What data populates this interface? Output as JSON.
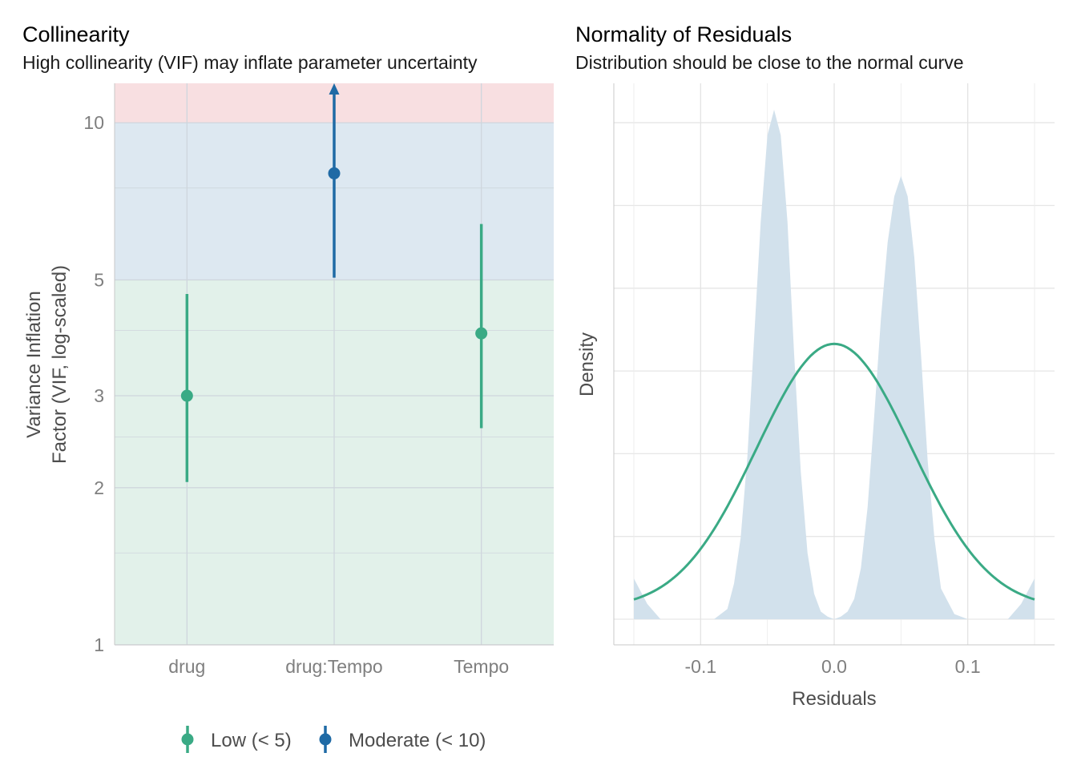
{
  "chart_data": [
    {
      "type": "pointrange",
      "title": "Collinearity",
      "subtitle": "High collinearity (VIF) may inflate parameter uncertainty",
      "ylabel_line1": "Variance Inflation",
      "ylabel_line2": "Factor (VIF, log-scaled)",
      "y_scale": "log",
      "ylim": [
        1,
        11.9
      ],
      "y_ticks": [
        1,
        2,
        3,
        5,
        10
      ],
      "y_tick_labels": [
        "1",
        "2",
        "3",
        "5",
        "10"
      ],
      "y_minor_gridlines": [
        1.5,
        2.5,
        4,
        7.5
      ],
      "categories": [
        "drug",
        "drug:Tempo",
        "Tempo"
      ],
      "points": [
        {
          "category": "drug",
          "vif": 3.0,
          "low": 2.05,
          "high": 4.7,
          "group": "Low (< 5)"
        },
        {
          "category": "drug:Tempo",
          "vif": 8.0,
          "low": 5.05,
          "high": 11.9,
          "high_truncated": true,
          "group": "Moderate (< 10)"
        },
        {
          "category": "Tempo",
          "vif": 3.95,
          "low": 2.6,
          "high": 6.4,
          "group": "Low (< 5)"
        }
      ],
      "bands": [
        {
          "from": 1,
          "to": 5,
          "color": "#e2f1ea"
        },
        {
          "from": 5,
          "to": 10,
          "color": "#dde8f1"
        },
        {
          "from": 10,
          "to": 11.9,
          "color": "#f8dfe1"
        }
      ],
      "legend": {
        "position": "bottom",
        "items": [
          {
            "label": "Low (< 5)",
            "color": "#3aaa85"
          },
          {
            "label": "Moderate (< 10)",
            "color": "#1f6aa5"
          }
        ]
      },
      "grid": true
    },
    {
      "type": "area",
      "title": "Normality of Residuals",
      "subtitle": "Distribution should be close to the normal curve",
      "xlabel": "Residuals",
      "ylabel": "Density",
      "xlim": [
        -0.15,
        0.15
      ],
      "x_ticks": [
        -0.1,
        0.0,
        0.1
      ],
      "x_tick_labels": [
        "-0.1",
        "0.0",
        "0.1"
      ],
      "density_x": [
        -0.15,
        -0.14,
        -0.13,
        -0.12,
        -0.11,
        -0.1,
        -0.09,
        -0.08,
        -0.075,
        -0.07,
        -0.065,
        -0.06,
        -0.055,
        -0.05,
        -0.045,
        -0.04,
        -0.035,
        -0.03,
        -0.025,
        -0.02,
        -0.015,
        -0.01,
        -0.005,
        0.0,
        0.005,
        0.01,
        0.015,
        0.02,
        0.025,
        0.03,
        0.035,
        0.04,
        0.045,
        0.05,
        0.055,
        0.06,
        0.065,
        0.07,
        0.075,
        0.08,
        0.09,
        0.1,
        0.11,
        0.12,
        0.13,
        0.14,
        0.15
      ],
      "density_y": [
        0.08,
        0.03,
        0.0,
        0.0,
        0.0,
        0.0,
        0.0,
        0.02,
        0.07,
        0.16,
        0.32,
        0.55,
        0.78,
        0.95,
        1.0,
        0.95,
        0.78,
        0.52,
        0.29,
        0.13,
        0.05,
        0.015,
        0.005,
        0.0,
        0.005,
        0.015,
        0.04,
        0.1,
        0.22,
        0.4,
        0.59,
        0.74,
        0.83,
        0.87,
        0.83,
        0.71,
        0.52,
        0.31,
        0.16,
        0.06,
        0.01,
        0.0,
        0.0,
        0.0,
        0.0,
        0.03,
        0.08
      ],
      "normal_curve": {
        "mean": 0.0,
        "sd": 0.058,
        "peak_relative": 0.52
      },
      "fill_color": "#d2e1ec",
      "line_color": "#3aaa85",
      "grid": true
    }
  ]
}
